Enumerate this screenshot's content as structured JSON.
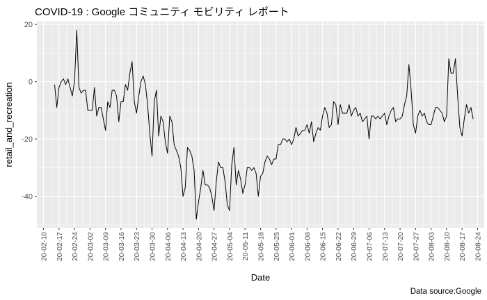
{
  "title": "COVID-19 : Google コミュニティ モビリティ レポート",
  "caption": "Data source:Google",
  "chart_data": {
    "type": "line",
    "title": "COVID-19 : Google コミュニティ モビリティ レポート",
    "xlabel": "Date",
    "ylabel": "retail_and_recreation",
    "x_start": "2020-02-15",
    "x_end": "2020-08-21",
    "xlim": [
      "2020-02-07",
      "2020-08-27"
    ],
    "ylim": [
      -51,
      21
    ],
    "yticks": [
      20,
      0,
      -20,
      -40
    ],
    "xticks": [
      "20-02-10",
      "20-02-17",
      "20-02-24",
      "20-03-02",
      "20-03-09",
      "20-03-16",
      "20-03-23",
      "20-03-30",
      "20-04-06",
      "20-04-13",
      "20-04-20",
      "20-04-27",
      "20-05-04",
      "20-05-11",
      "20-05-18",
      "20-05-25",
      "20-06-01",
      "20-06-08",
      "20-06-15",
      "20-06-22",
      "20-06-29",
      "20-07-06",
      "20-07-13",
      "20-07-20",
      "20-07-27",
      "20-08-03",
      "20-08-10",
      "20-08-17",
      "20-08-24"
    ],
    "grid": true,
    "background": "#ebebeb",
    "line_color": "#000000",
    "series": [
      {
        "values": [
          -1,
          -9,
          -2,
          0,
          1,
          -1,
          1,
          -2,
          -5,
          0,
          18,
          -2,
          -4,
          -3,
          -3,
          -10,
          -10,
          -10,
          -2,
          -12,
          -9,
          -9,
          -13,
          -17,
          -7,
          -9,
          -3,
          -3,
          -5,
          -14,
          -7,
          -7,
          -1,
          -3,
          3,
          7,
          -7,
          -11,
          -5,
          0,
          2,
          -1,
          -8,
          -18,
          -26,
          -7,
          -3,
          -19,
          -12,
          -14,
          -21,
          -25,
          -12,
          -14,
          -22,
          -24,
          -26,
          -30,
          -40,
          -37,
          -23,
          -24,
          -26,
          -31,
          -48,
          -42,
          -37,
          -31,
          -36,
          -36,
          -37,
          -40,
          -45,
          -35,
          -28,
          -30,
          -30,
          -35,
          -43,
          -45,
          -29,
          -23,
          -36,
          -31,
          -34,
          -39,
          -36,
          -30,
          -30,
          -31,
          -30,
          -32,
          -40,
          -33,
          -32,
          -28,
          -26,
          -27,
          -29,
          -27,
          -27,
          -22,
          -22,
          -20,
          -20,
          -21,
          -20,
          -22,
          -20,
          -16,
          -19,
          -18,
          -17,
          -17,
          -15,
          -18,
          -14,
          -21,
          -18,
          -16,
          -17,
          -12,
          -9,
          -11,
          -16,
          -15,
          -7,
          -8,
          -15,
          -8,
          -11,
          -11,
          -11,
          -8,
          -12,
          -10,
          -9,
          -12,
          -11,
          -14,
          -13,
          -12,
          -20,
          -12,
          -12,
          -13,
          -12,
          -13,
          -12,
          -11,
          -15,
          -12,
          -10,
          -9,
          -14,
          -13,
          -13,
          -12,
          -8,
          -5,
          6,
          -3,
          -15,
          -18,
          -12,
          -10,
          -12,
          -11,
          -14,
          -15,
          -15,
          -12,
          -9,
          -9,
          -10,
          -11,
          -14,
          -12,
          8,
          3,
          3,
          8,
          -5,
          -16,
          -19,
          -13,
          -8,
          -11,
          -9,
          -13
        ]
      }
    ]
  }
}
